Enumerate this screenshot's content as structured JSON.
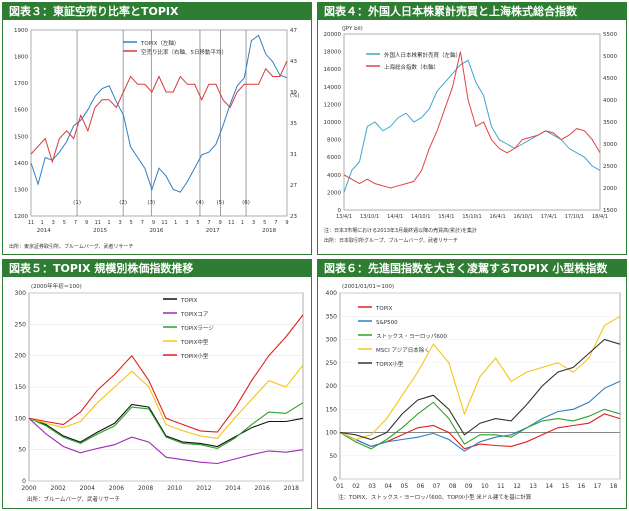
{
  "chart_data": [
    {
      "type": "line",
      "title": "図表３：東証空売り比率とTOPIX",
      "unit_left": "",
      "unit_right": "(%)",
      "y_left_ticks": [
        "1900",
        "1800",
        "1700",
        "1600",
        "1500",
        "1400",
        "1300",
        "1200"
      ],
      "y_left_ylim": [
        1200,
        1900
      ],
      "y_right_ticks": [
        "47",
        "43",
        "39",
        "35",
        "31",
        "27",
        "23"
      ],
      "y_right_ylim": [
        23,
        47
      ],
      "x_month_ticks": [
        "11",
        "1",
        "3",
        "5",
        "7",
        "9",
        "11",
        "1",
        "3",
        "5",
        "7",
        "9",
        "11",
        "1",
        "3",
        "5",
        "7",
        "9",
        "11",
        "1",
        "3",
        "5",
        "7",
        "9"
      ],
      "x_year_labels": [
        "2014",
        "2015",
        "2016",
        "2017",
        "2018"
      ],
      "events": [
        "(1)",
        "(2)",
        "(3)",
        "(4)",
        "(5)",
        "(6)"
      ],
      "events_t": [
        0.18,
        0.36,
        0.47,
        0.66,
        0.74,
        0.84
      ],
      "legend": [
        "TOPIX（左軸）",
        "空売り比率（右軸、5日移動平均）"
      ],
      "note": "出所：東京証券取引所、ブルームバーグ、武者リサーチ",
      "series": [
        {
          "name": "TOPIX（左軸）",
          "color": "#2f7fc4",
          "axis": "left",
          "values": [
            1400,
            1320,
            1420,
            1410,
            1440,
            1480,
            1540,
            1560,
            1600,
            1650,
            1680,
            1690,
            1630,
            1580,
            1460,
            1420,
            1380,
            1300,
            1380,
            1350,
            1300,
            1290,
            1330,
            1380,
            1430,
            1440,
            1470,
            1540,
            1620,
            1690,
            1720,
            1860,
            1880,
            1810,
            1780,
            1730,
            1720
          ]
        },
        {
          "name": "空売り比率（右軸、5日移動平均）",
          "color": "#d93a3a",
          "axis": "right",
          "values": [
            31,
            32,
            33,
            30,
            33,
            34,
            33,
            36,
            34,
            37,
            38,
            38,
            37,
            39,
            41,
            40,
            40,
            39,
            41,
            39,
            39,
            41,
            40,
            40,
            38,
            40,
            40,
            38,
            37,
            39,
            40,
            40,
            40,
            42,
            41,
            41,
            43
          ]
        }
      ]
    },
    {
      "type": "line",
      "title": "図表４：外国人日本株累計売買と上海株式総合指数",
      "unit_left": "(JPY bil)",
      "y_left_ticks": [
        "20000",
        "18000",
        "16000",
        "14000",
        "12000",
        "10000",
        "8000",
        "6000",
        "4000",
        "2000",
        "0"
      ],
      "y_left_ylim": [
        0,
        20000
      ],
      "y_right_ticks": [
        "5500",
        "5000",
        "4500",
        "4000",
        "3500",
        "3000",
        "2500",
        "2000",
        "1500"
      ],
      "y_right_ylim": [
        1500,
        5500
      ],
      "x_ticks": [
        "13/4/1",
        "13/10/1",
        "14/4/1",
        "14/10/1",
        "15/4/1",
        "15/10/1",
        "16/4/1",
        "16/10/1",
        "17/4/1",
        "17/10/1",
        "18/4/1"
      ],
      "legend": [
        "外国人日本株累計売買（左軸）",
        "上海総合指数（右軸）"
      ],
      "note": "注：日本3市場における2013年3月最終週以降の売買高(累計)を集計",
      "source": "出所：日本取引所グループ、ブルームバーグ、武者リサーチ",
      "series": [
        {
          "name": "外国人日本株累計売買（左軸）",
          "color": "#41a6c9",
          "axis": "left",
          "values": [
            2000,
            4500,
            5500,
            9500,
            10000,
            9000,
            9500,
            10500,
            11000,
            10000,
            10500,
            11500,
            13500,
            14500,
            15500,
            16500,
            17000,
            14500,
            13000,
            9500,
            8000,
            7500,
            7000,
            7500,
            8000,
            8500,
            9000,
            8500,
            8000,
            7000,
            6500,
            6000,
            5000,
            4500
          ]
        },
        {
          "name": "上海総合指数（右軸）",
          "color": "#e04444",
          "axis": "right",
          "values": [
            2300,
            2200,
            2100,
            2200,
            2100,
            2050,
            2000,
            2050,
            2100,
            2150,
            2400,
            2900,
            3300,
            3800,
            4300,
            5100,
            4000,
            3400,
            3500,
            3100,
            2900,
            2800,
            2900,
            3100,
            3150,
            3200,
            3300,
            3250,
            3100,
            3200,
            3350,
            3300,
            3100,
            2800
          ]
        }
      ]
    },
    {
      "type": "line",
      "title": "図表５：TOPIX 規模別株価指数推移",
      "unit_left": "(2000年年初＝100)",
      "y_ticks": [
        "300",
        "250",
        "200",
        "150",
        "100",
        "50",
        "0"
      ],
      "ylim": [
        0,
        300
      ],
      "x_ticks": [
        "2000",
        "2002",
        "2004",
        "2006",
        "2008",
        "2010",
        "2012",
        "2014",
        "2016",
        "2018"
      ],
      "legend": [
        "TOPIX",
        "TOPIXコア",
        "TOPIXラージ",
        "TOPIX中型",
        "TOPIX小型"
      ],
      "note": "出所：ブルームバーグ、武者リサーチ",
      "series": [
        {
          "name": "TOPIX",
          "color": "#111111",
          "values": [
            100,
            90,
            72,
            62,
            78,
            92,
            122,
            118,
            72,
            62,
            60,
            55,
            70,
            85,
            95,
            95,
            100
          ]
        },
        {
          "name": "TOPIXコア",
          "color": "#9c2ab6",
          "values": [
            100,
            75,
            55,
            45,
            52,
            58,
            70,
            62,
            38,
            34,
            30,
            28,
            35,
            42,
            48,
            46,
            50
          ]
        },
        {
          "name": "TOPIXラージ",
          "color": "#2ca02c",
          "values": [
            100,
            88,
            70,
            60,
            75,
            88,
            118,
            115,
            70,
            60,
            58,
            52,
            68,
            90,
            110,
            108,
            125
          ]
        },
        {
          "name": "TOPIX中型",
          "color": "#f5c518",
          "values": [
            100,
            92,
            85,
            95,
            125,
            150,
            175,
            150,
            90,
            80,
            72,
            68,
            100,
            130,
            160,
            150,
            185
          ]
        },
        {
          "name": "TOPIX小型",
          "color": "#e02020",
          "values": [
            100,
            95,
            90,
            110,
            145,
            170,
            200,
            160,
            100,
            90,
            80,
            78,
            115,
            160,
            200,
            230,
            265
          ]
        }
      ]
    },
    {
      "type": "line",
      "title": "図表６：先進国指数を大きく凌駕するTOPIX 小型株指数",
      "unit_left": "(2001/01/01＝100)",
      "y_ticks": [
        "400",
        "350",
        "300",
        "250",
        "200",
        "150",
        "100",
        "50",
        "0"
      ],
      "ylim": [
        0,
        400
      ],
      "x_ticks": [
        "01",
        "02",
        "03",
        "04",
        "05",
        "06",
        "07",
        "08",
        "09",
        "10",
        "11",
        "12",
        "13",
        "14",
        "15",
        "16",
        "17",
        "18"
      ],
      "legend": [
        "TOPIX",
        "S&P500",
        "ストックス・ヨーロッパ600",
        "MSCI アジア日本除く",
        "TOPIX小型"
      ],
      "note": "注：TOPIX、ストックス・ヨーロッパ600、TOPIX小型 米ドル建てを基に計算",
      "series": [
        {
          "name": "TOPIX",
          "color": "#e02020",
          "values": [
            100,
            85,
            70,
            80,
            95,
            110,
            115,
            100,
            65,
            75,
            72,
            70,
            80,
            95,
            110,
            115,
            120,
            140,
            130
          ]
        },
        {
          "name": "S&P500",
          "color": "#2f7fc4",
          "values": [
            100,
            85,
            70,
            80,
            85,
            90,
            98,
            85,
            60,
            80,
            90,
            95,
            110,
            130,
            145,
            150,
            165,
            195,
            210
          ]
        },
        {
          "name": "ストックス・ヨーロッパ600",
          "color": "#2ca02c",
          "values": [
            100,
            80,
            65,
            85,
            110,
            140,
            165,
            130,
            75,
            95,
            95,
            90,
            110,
            125,
            130,
            125,
            135,
            150,
            140
          ]
        },
        {
          "name": "MSCI アジア日本除く",
          "color": "#f5c518",
          "values": [
            100,
            85,
            95,
            130,
            180,
            230,
            290,
            250,
            140,
            220,
            260,
            210,
            230,
            240,
            250,
            230,
            260,
            330,
            350
          ]
        },
        {
          "name": "TOPIX小型",
          "color": "#333333",
          "values": [
            100,
            95,
            85,
            100,
            140,
            170,
            180,
            150,
            95,
            120,
            130,
            125,
            160,
            200,
            230,
            240,
            270,
            300,
            290
          ]
        }
      ]
    }
  ]
}
